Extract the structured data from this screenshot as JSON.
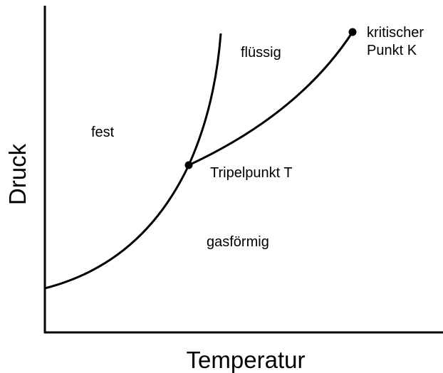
{
  "axes": {
    "x_label": "Temperatur",
    "y_label": "Druck"
  },
  "regions": [
    "fest",
    "flüssig",
    "gasförmig"
  ],
  "points": [
    {
      "label": [
        "Tripelpunkt T"
      ]
    },
    {
      "label": [
        "kritischer",
        "Punkt K"
      ]
    }
  ]
}
